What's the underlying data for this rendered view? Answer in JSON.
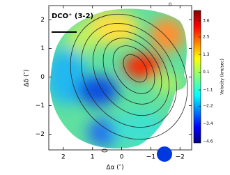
{
  "chart_data": {
    "type": "image",
    "title": "DCO⁺ (3-2)",
    "x_label": "Δα (″)",
    "y_label": "Δδ (″)",
    "colorbar_label": "Velocity (km/sec)",
    "xlim": [
      2.5,
      -2.4
    ],
    "ylim": [
      -2.55,
      2.5
    ],
    "xticks": [
      2,
      1,
      0,
      {
        "value": -1,
        "label": "−1"
      },
      {
        "value": -2,
        "label": "−2"
      }
    ],
    "yticks": [
      2,
      1,
      0,
      {
        "value": -1,
        "label": "−1"
      },
      {
        "value": -2,
        "label": "−2"
      }
    ],
    "clim": [
      -4.7,
      4.3
    ],
    "cticks": [
      3.6,
      2.5,
      1.3,
      0.1,
      {
        "value": -1.1,
        "label": "−1.1"
      },
      {
        "value": -2.2,
        "label": "−2.2"
      },
      {
        "value": -3.4,
        "label": "−3.4"
      },
      {
        "value": -4.6,
        "label": "−4.6"
      }
    ]
  }
}
